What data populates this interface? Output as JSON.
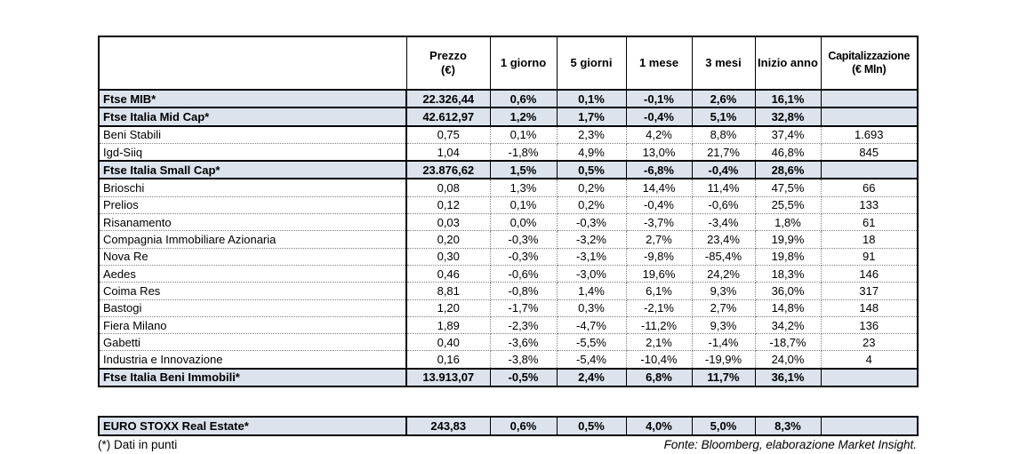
{
  "colors": {
    "row_highlight": "#dce3ed",
    "border": "#000000",
    "dotted_grid": "#808080",
    "background": "#ffffff"
  },
  "table": {
    "headers": {
      "name": "",
      "prezzo_line1": "Prezzo",
      "prezzo_line2": "(€)",
      "d1": "1 giorno",
      "d5": "5 giorni",
      "m1": "1 mese",
      "m3": "3 mesi",
      "ytd": "Inizio anno",
      "cap_line1": "Capitalizzazione",
      "cap_line2": "(€ Mln)"
    },
    "rows": [
      {
        "name": "Ftse MIB*",
        "type": "index",
        "values": [
          "22.326,44",
          "0,6%",
          "0,1%",
          "-0,1%",
          "2,6%",
          "16,1%",
          ""
        ]
      },
      {
        "name": "Ftse Italia Mid Cap*",
        "type": "index",
        "values": [
          "42.612,97",
          "1,2%",
          "1,7%",
          "-0,4%",
          "5,1%",
          "32,8%",
          ""
        ]
      },
      {
        "name": "Beni Stabili",
        "type": "stock",
        "values": [
          "0,75",
          "0,1%",
          "2,3%",
          "4,2%",
          "8,8%",
          "37,4%",
          "1.693"
        ]
      },
      {
        "name": "Igd-Siiq",
        "type": "stock",
        "values": [
          "1,04",
          "-1,8%",
          "4,9%",
          "13,0%",
          "21,7%",
          "46,8%",
          "845"
        ]
      },
      {
        "name": "Ftse Italia Small Cap*",
        "type": "index",
        "values": [
          "23.876,62",
          "1,5%",
          "0,5%",
          "-6,8%",
          "-0,4%",
          "28,6%",
          ""
        ]
      },
      {
        "name": "Brioschi",
        "type": "stock",
        "values": [
          "0,08",
          "1,3%",
          "0,2%",
          "14,4%",
          "11,4%",
          "47,5%",
          "66"
        ]
      },
      {
        "name": "Prelios",
        "type": "stock",
        "values": [
          "0,12",
          "0,1%",
          "0,2%",
          "-0,4%",
          "-0,6%",
          "25,5%",
          "133"
        ]
      },
      {
        "name": "Risanamento",
        "type": "stock",
        "values": [
          "0,03",
          "0,0%",
          "-0,3%",
          "-3,7%",
          "-3,4%",
          "1,8%",
          "61"
        ]
      },
      {
        "name": "Compagnia Immobiliare Azionaria",
        "type": "stock",
        "values": [
          "0,20",
          "-0,3%",
          "-3,2%",
          "2,7%",
          "23,4%",
          "19,9%",
          "18"
        ]
      },
      {
        "name": "Nova Re",
        "type": "stock",
        "values": [
          "0,30",
          "-0,3%",
          "-3,1%",
          "-9,8%",
          "-85,4%",
          "19,8%",
          "91"
        ]
      },
      {
        "name": "Aedes",
        "type": "stock",
        "values": [
          "0,46",
          "-0,6%",
          "-3,0%",
          "19,6%",
          "24,2%",
          "18,3%",
          "146"
        ]
      },
      {
        "name": "Coima Res",
        "type": "stock",
        "values": [
          "8,81",
          "-0,8%",
          "1,4%",
          "6,1%",
          "9,3%",
          "36,0%",
          "317"
        ]
      },
      {
        "name": "Bastogi",
        "type": "stock",
        "values": [
          "1,20",
          "-1,7%",
          "0,3%",
          "-2,1%",
          "2,7%",
          "14,8%",
          "148"
        ]
      },
      {
        "name": "Fiera Milano",
        "type": "stock",
        "values": [
          "1,89",
          "-2,3%",
          "-4,7%",
          "-11,2%",
          "9,3%",
          "34,2%",
          "136"
        ]
      },
      {
        "name": "Gabetti",
        "type": "stock",
        "values": [
          "0,40",
          "-3,6%",
          "-5,5%",
          "2,1%",
          "-1,4%",
          "-18,7%",
          "23"
        ]
      },
      {
        "name": "Industria e Innovazione",
        "type": "stock",
        "values": [
          "0,16",
          "-3,8%",
          "-5,4%",
          "-10,4%",
          "-19,9%",
          "24,0%",
          "4"
        ]
      },
      {
        "name": "Ftse Italia Beni Immobili*",
        "type": "index",
        "values": [
          "13.913,07",
          "-0,5%",
          "2,4%",
          "6,8%",
          "11,7%",
          "36,1%",
          ""
        ]
      }
    ]
  },
  "euro_row": {
    "name": "EURO STOXX Real Estate*",
    "values": [
      "243,83",
      "0,6%",
      "0,5%",
      "4,0%",
      "5,0%",
      "8,3%",
      ""
    ]
  },
  "footer": {
    "left": "(*) Dati in punti",
    "right": "Fonte: Bloomberg, elaborazione Market Insight."
  }
}
